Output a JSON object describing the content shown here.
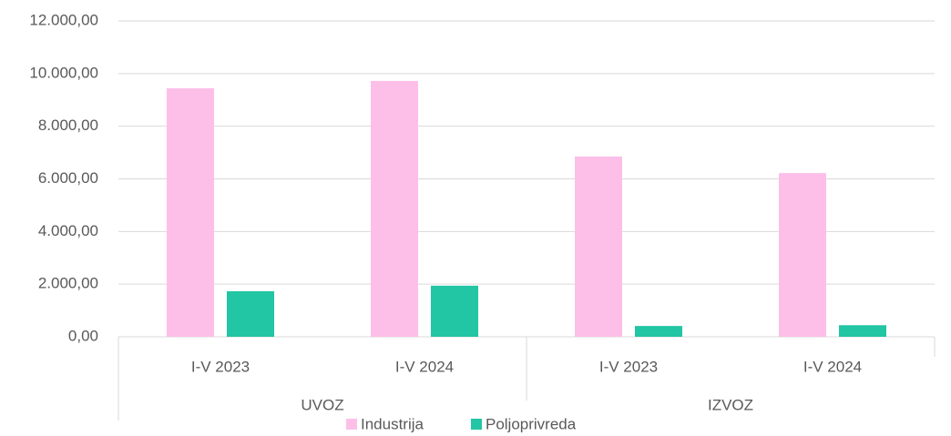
{
  "chart_data": {
    "type": "bar",
    "categories": [
      "I-V 2023",
      "I-V 2024",
      "I-V 2023",
      "I-V 2024"
    ],
    "groups": [
      "UVOZ",
      "IZVOZ"
    ],
    "series": [
      {
        "name": "Industrija",
        "color": "#fdbfe8",
        "values": [
          9440,
          9720,
          6850,
          6220
        ]
      },
      {
        "name": "Poljoprivreda",
        "color": "#22c5a4",
        "values": [
          1730,
          1940,
          410,
          440
        ]
      }
    ],
    "ylim": [
      0,
      12000
    ],
    "yticks": [
      {
        "value": 0,
        "label": "0,00"
      },
      {
        "value": 2000,
        "label": "2.000,00"
      },
      {
        "value": 4000,
        "label": "4.000,00"
      },
      {
        "value": 6000,
        "label": "6.000,00"
      },
      {
        "value": 8000,
        "label": "8.000,00"
      },
      {
        "value": 10000,
        "label": "10.000,00"
      },
      {
        "value": 12000,
        "label": "12.000,00"
      }
    ],
    "grid": true,
    "legend": "bottom"
  }
}
